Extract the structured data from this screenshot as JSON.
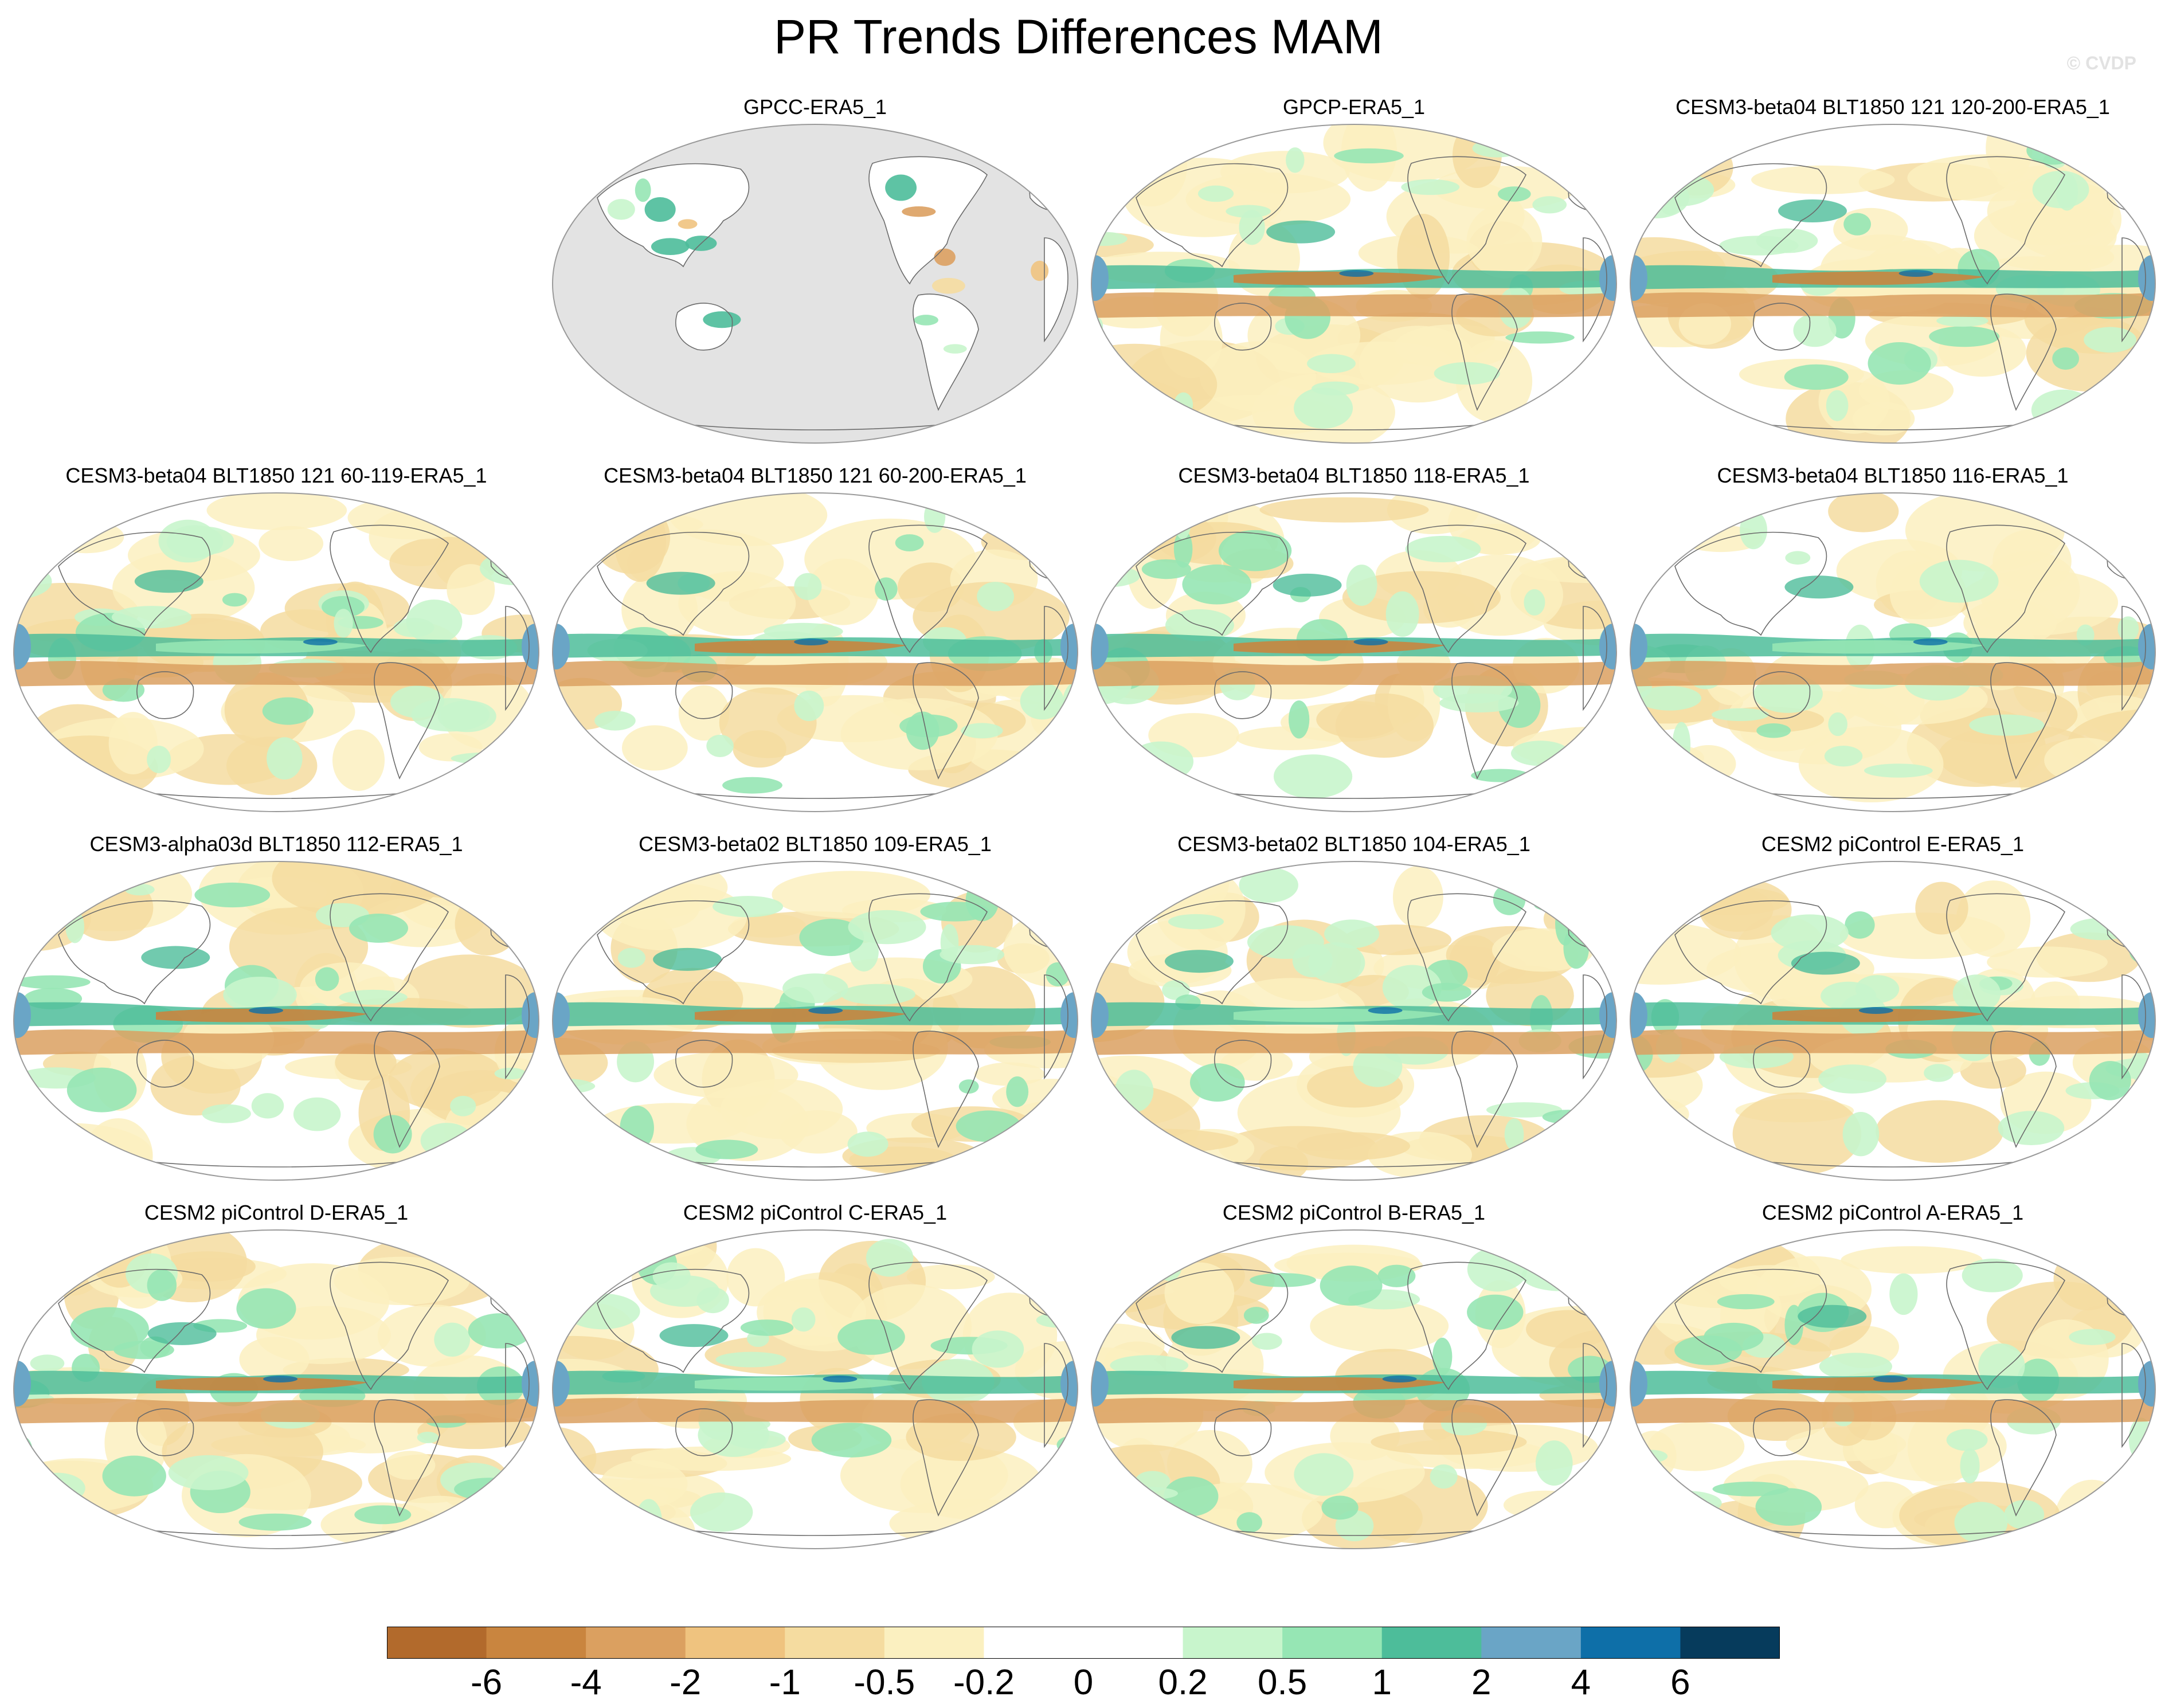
{
  "figure": {
    "title": "PR Trends Differences MAM",
    "credit": "© CVDP"
  },
  "panels": [
    {
      "title": "GPCC-ERA5_1",
      "coverage": "land"
    },
    {
      "title": "GPCP-ERA5_1",
      "coverage": "global"
    },
    {
      "title": "CESM3-beta04 BLT1850 121 120-200-ERA5_1",
      "coverage": "global"
    },
    {
      "title": "CESM3-beta04 BLT1850 121 60-119-ERA5_1",
      "coverage": "global"
    },
    {
      "title": "CESM3-beta04 BLT1850 121 60-200-ERA5_1",
      "coverage": "global"
    },
    {
      "title": "CESM3-beta04 BLT1850 118-ERA5_1",
      "coverage": "global"
    },
    {
      "title": "CESM3-beta04 BLT1850 116-ERA5_1",
      "coverage": "global"
    },
    {
      "title": "CESM3-alpha03d BLT1850 112-ERA5_1",
      "coverage": "global"
    },
    {
      "title": "CESM3-beta02 BLT1850 109-ERA5_1",
      "coverage": "global"
    },
    {
      "title": "CESM3-beta02 BLT1850 104-ERA5_1",
      "coverage": "global"
    },
    {
      "title": "CESM2 piControl E-ERA5_1",
      "coverage": "global"
    },
    {
      "title": "CESM2 piControl D-ERA5_1",
      "coverage": "global"
    },
    {
      "title": "CESM2 piControl C-ERA5_1",
      "coverage": "global"
    },
    {
      "title": "CESM2 piControl B-ERA5_1",
      "coverage": "global"
    },
    {
      "title": "CESM2 piControl A-ERA5_1",
      "coverage": "global"
    }
  ],
  "colorbar": {
    "labels": [
      "-6",
      "-4",
      "-2",
      "-1",
      "-0.5",
      "-0.2",
      "0",
      "0.2",
      "0.5",
      "1",
      "2",
      "4",
      "6"
    ],
    "colors": [
      "#b26a2c",
      "#c9853f",
      "#dba060",
      "#efc37f",
      "#f5dca0",
      "#fbf0c0",
      "#ffffff",
      "#ffffff",
      "#c8f5cc",
      "#96e6b4",
      "#4dbd9a",
      "#6aa5c6",
      "#0e6fa8",
      "#063b5c"
    ]
  },
  "map_colors": {
    "land_mask": "#e3e3e3",
    "coastline": "#6b6b6b",
    "border": "#9a9a9a"
  }
}
